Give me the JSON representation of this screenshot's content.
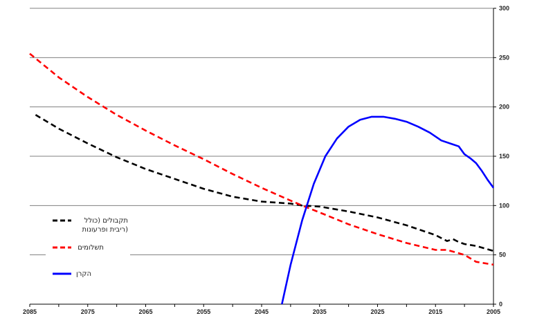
{
  "chart_data": {
    "type": "line",
    "xlim": [
      2085,
      2005
    ],
    "ylim": [
      0,
      300
    ],
    "x_ticks": [
      "2085",
      "2075",
      "2065",
      "2055",
      "2045",
      "2035",
      "2025",
      "2015",
      "2005"
    ],
    "y_ticks": [
      "0",
      "50",
      "100",
      "150",
      "200",
      "250",
      "300"
    ],
    "y_axis_side": "right",
    "grid": "horizontal",
    "legend_position": "left",
    "series": [
      {
        "name": "תקבולים (כולל ריבית ופרעונות)",
        "name_lines": [
          "תקבולים (כולל",
          "ריבית ופרעונות)"
        ],
        "color": "#000000",
        "style": "dashed",
        "x": [
          2084,
          2080,
          2075,
          2070,
          2065,
          2060,
          2055,
          2050,
          2045,
          2040,
          2038,
          2035,
          2030,
          2025,
          2020,
          2015,
          2013,
          2012,
          2011,
          2010,
          2008,
          2005
        ],
        "y": [
          192,
          178,
          163,
          149,
          137,
          127,
          117,
          109,
          104,
          102,
          100,
          99,
          94,
          88,
          80,
          70,
          64,
          66,
          63,
          61,
          59,
          54
        ]
      },
      {
        "name": "תשלומים",
        "color": "#ff0000",
        "style": "dashed",
        "x": [
          2085,
          2080,
          2075,
          2070,
          2065,
          2060,
          2055,
          2050,
          2045,
          2040,
          2038,
          2035,
          2030,
          2025,
          2020,
          2015,
          2013,
          2010,
          2008,
          2005
        ],
        "y": [
          254,
          230,
          210,
          192,
          176,
          161,
          147,
          132,
          118,
          105,
          100,
          93,
          81,
          71,
          62,
          55,
          55,
          50,
          43,
          40
        ]
      },
      {
        "name": "הקרן",
        "color": "#0000ff",
        "style": "solid",
        "x": [
          2041.5,
          2040,
          2038,
          2036,
          2034,
          2032,
          2030,
          2028,
          2026,
          2024,
          2022,
          2020,
          2018,
          2016,
          2014,
          2012,
          2011,
          2010,
          2009,
          2008,
          2007,
          2006,
          2005
        ],
        "y": [
          0,
          40,
          85,
          122,
          150,
          168,
          180,
          187,
          190,
          190,
          188,
          185,
          180,
          174,
          166,
          162,
          160,
          152,
          148,
          143,
          135,
          126,
          118
        ]
      }
    ]
  }
}
